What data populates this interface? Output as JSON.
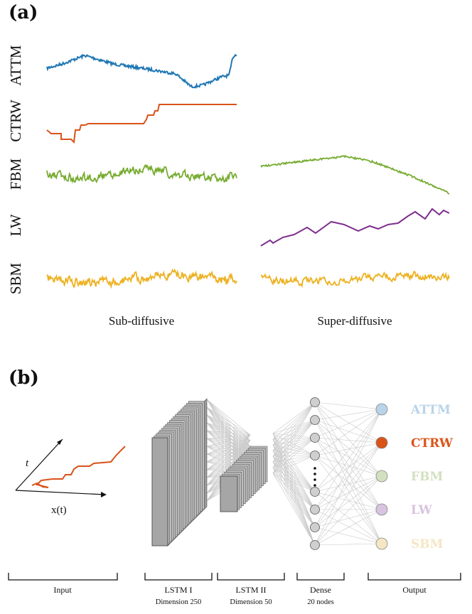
{
  "panel_a": {
    "label": "(a)",
    "row_labels": [
      "ATTM",
      "CTRW",
      "FBM",
      "LW",
      "SBM"
    ],
    "col_labels": [
      "Sub-diffusive",
      "Super-diffusive"
    ],
    "colors": {
      "ATTM": "#1f77b4",
      "CTRW": "#d95319",
      "FBM": "#77ac30",
      "LW": "#7e2f8e",
      "SBM": "#edb120"
    }
  },
  "panel_b": {
    "label": "(b)",
    "input": {
      "t_label": "t",
      "x_label": "x(t)"
    },
    "sections": [
      {
        "name": "Input",
        "sub": ""
      },
      {
        "name": "LSTM I",
        "sub": "Dimension 250"
      },
      {
        "name": "LSTM II",
        "sub": "Dimension 50"
      },
      {
        "name": "Dense",
        "sub": "20 nodes"
      },
      {
        "name": "Output",
        "sub": ""
      }
    ],
    "outputs": [
      {
        "label": "ATTM",
        "color": "#b9d3e8"
      },
      {
        "label": "CTRW",
        "color": "#d95319"
      },
      {
        "label": "FBM",
        "color": "#d3e0bf"
      },
      {
        "label": "LW",
        "color": "#d8c4df"
      },
      {
        "label": "SBM",
        "color": "#f5e6c4"
      }
    ]
  }
}
